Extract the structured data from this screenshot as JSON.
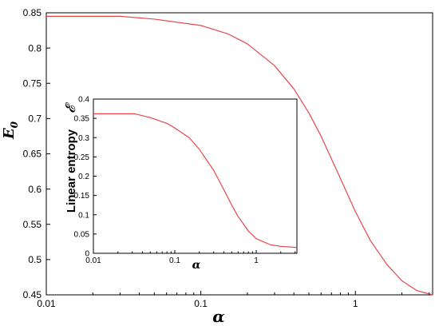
{
  "chart_data": [
    {
      "type": "line",
      "xlabel": "α",
      "ylabel_main": "E",
      "ylabel_sub": "0",
      "xscale": "log",
      "xlim": [
        0.01,
        3.16
      ],
      "ylim": [
        0.45,
        0.85
      ],
      "x_ticks": [
        0.01,
        0.1,
        1
      ],
      "x_tick_labels": [
        "0.01",
        "0.1",
        "1"
      ],
      "y_ticks": [
        0.45,
        0.5,
        0.55,
        0.6,
        0.65,
        0.7,
        0.75,
        0.8,
        0.85
      ],
      "y_tick_labels": [
        "0.45",
        "0.5",
        "0.55",
        "0.6",
        "0.65",
        "0.7",
        "0.75",
        "0.8",
        "0.85"
      ],
      "grid": false,
      "line_color": "#e8474a",
      "series": [
        {
          "x": [
            0.01,
            0.02,
            0.03,
            0.05,
            0.1,
            0.15,
            0.2,
            0.3,
            0.4,
            0.5,
            0.6,
            0.8,
            1.0,
            1.25,
            1.6,
            2.0,
            2.5,
            3.16
          ],
          "y": [
            0.845,
            0.845,
            0.845,
            0.841,
            0.832,
            0.82,
            0.806,
            0.775,
            0.742,
            0.708,
            0.675,
            0.615,
            0.568,
            0.527,
            0.493,
            0.47,
            0.456,
            0.45
          ]
        }
      ]
    },
    {
      "type": "line",
      "xlabel": "α",
      "ylabel": "Linear entropy",
      "ylabel_symbol": "𝓔",
      "xscale": "log",
      "xlim": [
        0.01,
        3.16
      ],
      "ylim": [
        0,
        0.4
      ],
      "x_ticks": [
        0.01,
        0.1,
        1
      ],
      "x_tick_labels": [
        "0.01",
        "0.1",
        "1"
      ],
      "y_ticks": [
        0,
        0.05,
        0.1,
        0.15,
        0.2,
        0.25,
        0.3,
        0.35,
        0.4
      ],
      "y_tick_labels": [
        "0",
        "0.05",
        "0.1",
        "0.15",
        "0.2",
        "0.25",
        "0.3",
        "0.35",
        "0.4"
      ],
      "grid": false,
      "line_color": "#e8474a",
      "series": [
        {
          "x": [
            0.01,
            0.02,
            0.032,
            0.05,
            0.08,
            0.1,
            0.15,
            0.2,
            0.3,
            0.4,
            0.5,
            0.6,
            0.8,
            1.0,
            1.5,
            2.0,
            3.16
          ],
          "y": [
            0.362,
            0.362,
            0.362,
            0.352,
            0.337,
            0.325,
            0.3,
            0.27,
            0.215,
            0.165,
            0.125,
            0.095,
            0.058,
            0.038,
            0.022,
            0.018,
            0.015
          ]
        }
      ]
    }
  ]
}
